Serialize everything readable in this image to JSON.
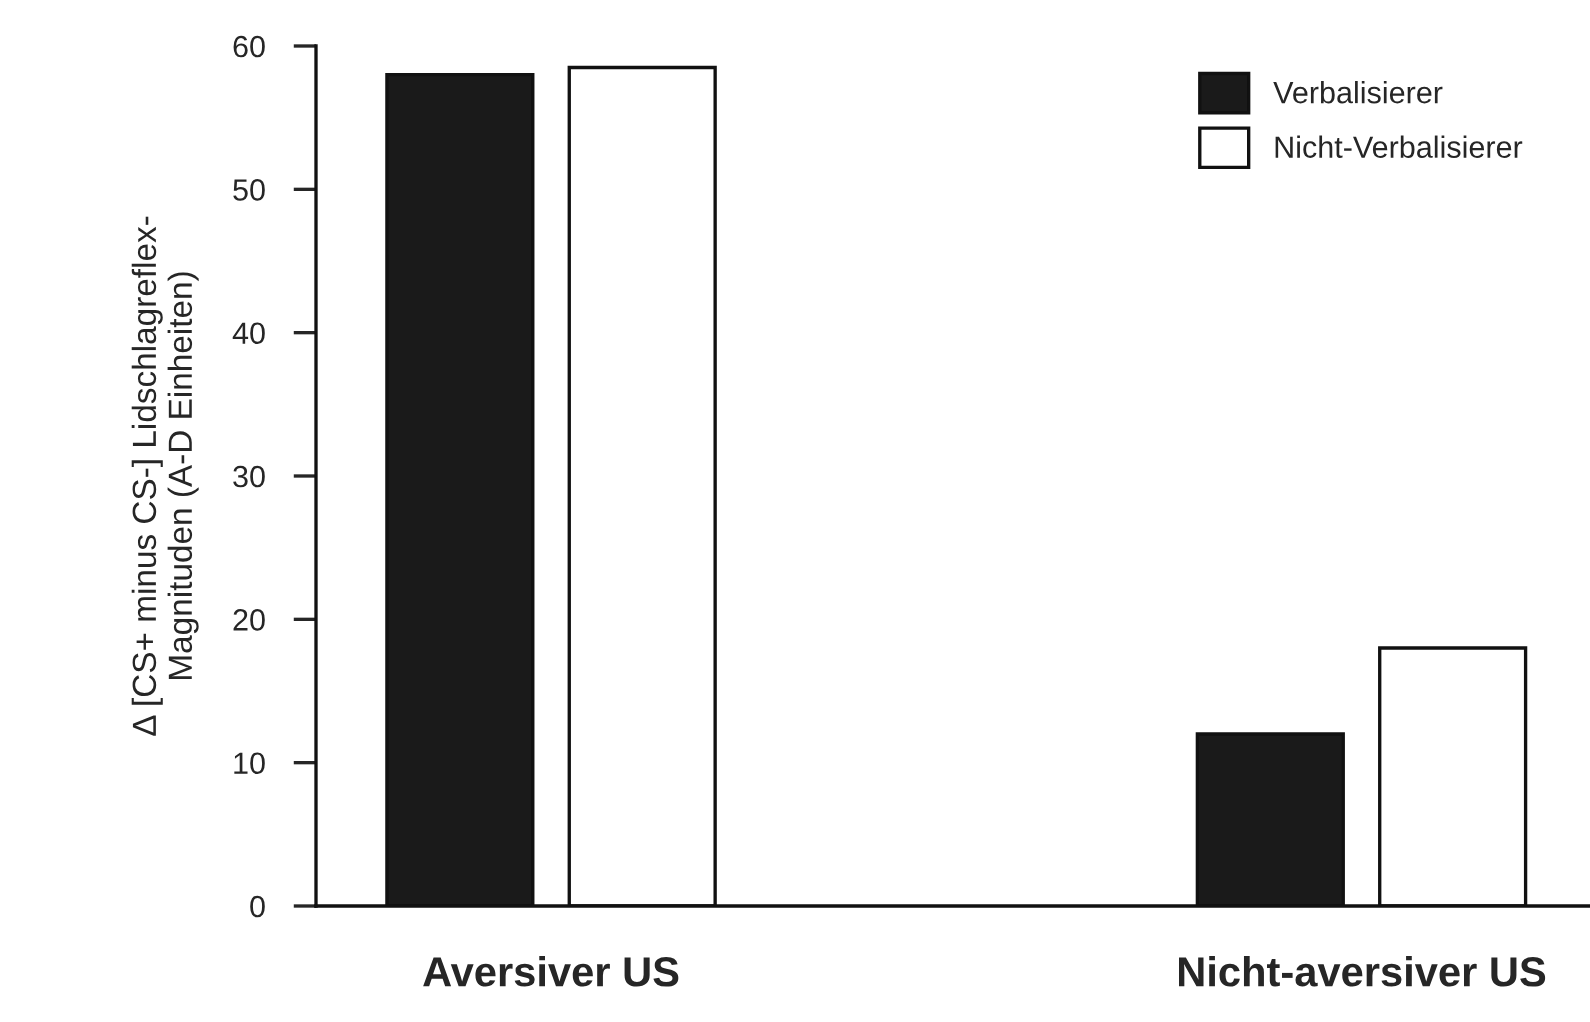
{
  "chart_data": {
    "type": "bar",
    "ylabel": "Δ [CS+ minus CS-] Lidschlagreflex-\nMagnituden (A-D Einheiten)",
    "categories": [
      "Aversiver US",
      "Nicht-aversiver US"
    ],
    "series": [
      {
        "name": "Verbalisierer",
        "color": "#1a1a1a",
        "values": [
          58,
          12
        ]
      },
      {
        "name": "Nicht-Verbalisierer",
        "color": "#ffffff",
        "values": [
          58.5,
          18
        ]
      }
    ],
    "ylim": [
      0,
      60
    ],
    "yticks": [
      0,
      10,
      20,
      30,
      40,
      50,
      60
    ],
    "grid": false,
    "legend": "top right"
  }
}
